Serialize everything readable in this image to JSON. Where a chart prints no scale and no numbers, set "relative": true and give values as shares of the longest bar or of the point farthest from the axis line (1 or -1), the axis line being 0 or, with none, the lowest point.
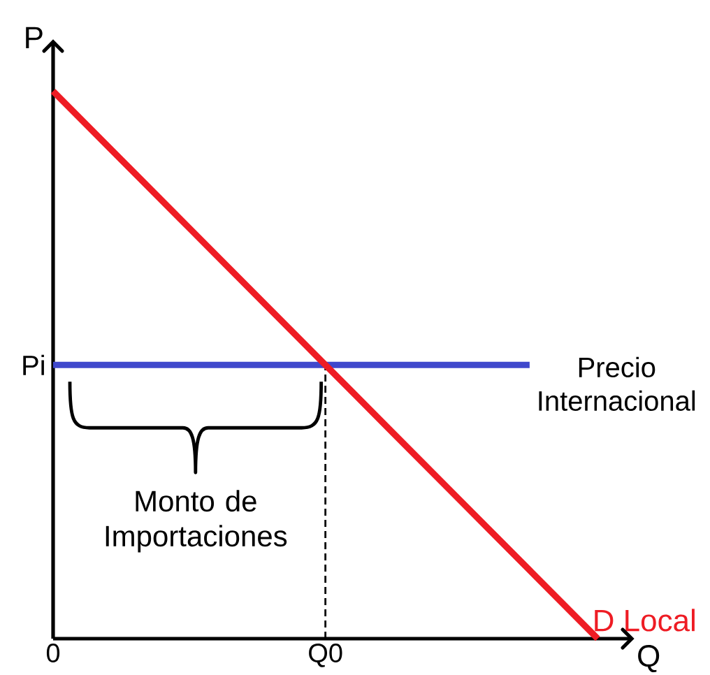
{
  "chart_data": {
    "type": "line",
    "relative": true,
    "xlabel": "Q",
    "ylabel": "P",
    "categories": [
      "0",
      null,
      null,
      null,
      "Q0",
      null,
      null,
      null,
      null
    ],
    "series": [
      {
        "name": "D Local",
        "color": "#ee1c24",
        "values": [
          1,
          0.875,
          0.75,
          0.625,
          0.5,
          0.375,
          0.25,
          0.125,
          0
        ]
      },
      {
        "name": "Precio Internacional",
        "color": "#3f48cc",
        "values": [
          0.5,
          0.5,
          0.5,
          0.5,
          0.5,
          0.5,
          0.5,
          0.5,
          null
        ]
      },
      {
        "color": "#000000",
        "x": [
          "Q0",
          "Q0"
        ],
        "values": [
          0,
          0.5
        ],
        "line_style": "dashed"
      }
    ],
    "annotations": [
      "Pi",
      "Monto de Importaciones"
    ]
  }
}
